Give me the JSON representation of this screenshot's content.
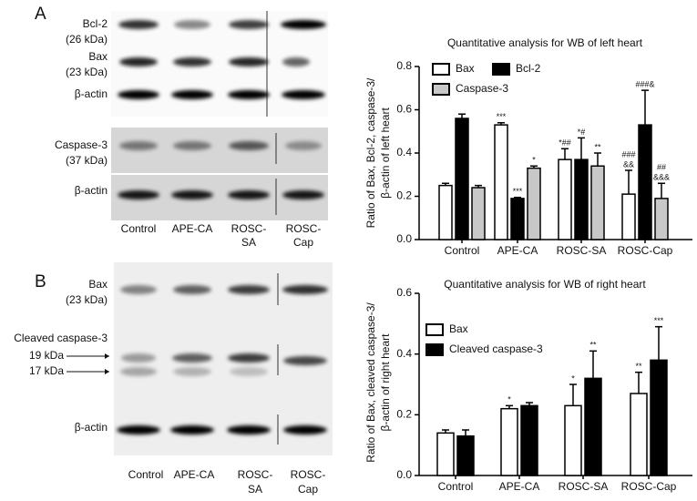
{
  "blots": {
    "A": {
      "label": "A",
      "rows": [
        [
          "Bcl-2",
          "(26 kDa)"
        ],
        [
          "Bax",
          "(23 kDa)"
        ],
        [
          "β-actin"
        ],
        [
          "Caspase-3",
          "(37 kDa)"
        ],
        [
          "β-actin"
        ]
      ],
      "lanes": [
        [
          "Control"
        ],
        [
          "APE-CA"
        ],
        [
          "ROSC-",
          "SA"
        ],
        [
          "ROSC-",
          "Cap"
        ]
      ]
    },
    "B": {
      "label": "B",
      "rows": [
        [
          "Bax",
          "(23 kDa)"
        ],
        [
          "Cleaved caspase-3"
        ],
        [
          "β-actin"
        ]
      ],
      "markers": [
        "19 kDa",
        "17 kDa"
      ],
      "lanes": [
        [
          "Control"
        ],
        [
          "APE-CA"
        ],
        [
          "ROSC-",
          "SA"
        ],
        [
          "ROSC-",
          "Cap"
        ]
      ]
    }
  },
  "chart_data": [
    {
      "type": "bar",
      "title": "Quantitative analysis for WB of left heart",
      "ylabel": [
        "Ratio of Bax, Bcl-2, caspase-3/",
        "β-actin of left heart"
      ],
      "categories": [
        "Control",
        "APE-CA",
        "ROSC-SA",
        "ROSC-Cap"
      ],
      "series": [
        {
          "name": "Bax",
          "color": "#ffffff",
          "values": [
            0.25,
            0.53,
            0.37,
            0.21
          ],
          "errors": [
            0.01,
            0.01,
            0.05,
            0.11
          ],
          "annotations": [
            null,
            [
              "***"
            ],
            [
              "*##"
            ],
            [
              "###",
              "&&"
            ]
          ]
        },
        {
          "name": "Bcl-2",
          "color": "#000000",
          "values": [
            0.56,
            0.19,
            0.37,
            0.53
          ],
          "errors": [
            0.02,
            0.005,
            0.1,
            0.16
          ],
          "annotations": [
            null,
            [
              "***"
            ],
            [
              "*#"
            ],
            [
              "###&"
            ]
          ]
        },
        {
          "name": "Caspase-3",
          "color": "#c8c8c8",
          "values": [
            0.24,
            0.33,
            0.34,
            0.19
          ],
          "errors": [
            0.01,
            0.01,
            0.06,
            0.07
          ],
          "annotations": [
            null,
            [
              "*"
            ],
            [
              "**"
            ],
            [
              "##",
              "&&&"
            ]
          ]
        }
      ],
      "ylim": [
        0,
        0.8
      ],
      "yticks": [
        {
          "value": 0,
          "label": "0.0"
        },
        0.2,
        0.4,
        0.6,
        0.8
      ],
      "grid": false
    },
    {
      "type": "bar",
      "title": "Quantitative analysis for WB of right heart",
      "ylabel": [
        "Ratio of Bax, cleaved caspase-3/",
        "β-actin of right heart"
      ],
      "categories": [
        "Control",
        "APE-CA",
        "ROSC-SA",
        "ROSC-Cap"
      ],
      "series": [
        {
          "name": "Bax",
          "color": "#ffffff",
          "values": [
            0.14,
            0.22,
            0.23,
            0.27
          ],
          "errors": [
            0.01,
            0.01,
            0.07,
            0.07
          ],
          "annotations": [
            null,
            [
              "*"
            ],
            [
              "*"
            ],
            [
              "**"
            ]
          ]
        },
        {
          "name": "Cleaved caspase-3",
          "color": "#000000",
          "values": [
            0.13,
            0.23,
            0.32,
            0.38
          ],
          "errors": [
            0.02,
            0.01,
            0.09,
            0.11
          ],
          "annotations": [
            null,
            null,
            [
              "**"
            ],
            [
              "***"
            ]
          ]
        }
      ],
      "ylim": [
        0,
        0.6
      ],
      "yticks": [
        {
          "value": 0,
          "label": "0.0"
        },
        0.2,
        0.4,
        0.6
      ],
      "grid": false
    }
  ]
}
